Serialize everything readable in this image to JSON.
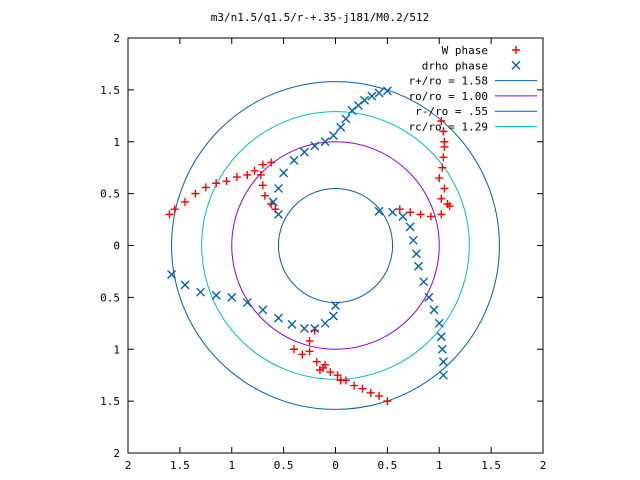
{
  "chart_data": {
    "type": "scatter",
    "title": "m3/n1.5/q1.5/r-+.35-j181/M0.2/512",
    "xlabel": "",
    "ylabel": "",
    "xlim": [
      -2,
      2
    ],
    "ylim": [
      -2,
      2
    ],
    "grid": false,
    "legend_position": "top-right",
    "x_ticks": [
      -2,
      -1.5,
      -1,
      -0.5,
      0,
      0.5,
      1,
      1.5,
      2
    ],
    "y_ticks": [
      -2,
      -1.5,
      -1,
      -0.5,
      0,
      0.5,
      1,
      1.5,
      2
    ],
    "x_tick_labels": [
      "2",
      "1.5",
      "1",
      "0.5",
      "0",
      "0.5",
      "1",
      "1.5",
      "2"
    ],
    "y_tick_labels": [
      "2",
      "1.5",
      "1",
      "0.5",
      "0",
      "0.5",
      "1",
      "1.5",
      "2"
    ],
    "circles": [
      {
        "name": "r+/ro = 1.58",
        "radius": 1.58,
        "color": "#0060ad"
      },
      {
        "name": "ro/ro = 1.00",
        "radius": 1.0,
        "color": "#9400d3"
      },
      {
        "name": "r-/ro = .55",
        "radius": 0.55,
        "color": "#0060ad"
      },
      {
        "name": "rc/ro = 1.29",
        "radius": 1.29,
        "color": "#00c0c0"
      }
    ],
    "series": [
      {
        "name": "W phase",
        "marker": "plus",
        "color": "#ff0000",
        "points": [
          [
            1.02,
            1.2
          ],
          [
            1.04,
            1.1
          ],
          [
            1.05,
            1.0
          ],
          [
            1.05,
            0.95
          ],
          [
            1.04,
            0.85
          ],
          [
            1.03,
            0.75
          ],
          [
            1.0,
            0.65
          ],
          [
            1.05,
            0.55
          ],
          [
            1.02,
            0.45
          ],
          [
            1.08,
            0.4
          ],
          [
            1.02,
            0.3
          ],
          [
            0.92,
            0.28
          ],
          [
            0.82,
            0.3
          ],
          [
            0.72,
            0.32
          ],
          [
            0.62,
            0.35
          ],
          [
            1.1,
            0.38
          ],
          [
            -1.6,
            0.3
          ],
          [
            -1.55,
            0.35
          ],
          [
            -1.45,
            0.42
          ],
          [
            -1.35,
            0.5
          ],
          [
            -1.25,
            0.56
          ],
          [
            -1.15,
            0.6
          ],
          [
            -1.05,
            0.62
          ],
          [
            -0.95,
            0.66
          ],
          [
            -0.85,
            0.68
          ],
          [
            -0.78,
            0.72
          ],
          [
            -0.7,
            0.78
          ],
          [
            -0.62,
            0.8
          ],
          [
            -0.72,
            0.68
          ],
          [
            -0.7,
            0.58
          ],
          [
            -0.68,
            0.48
          ],
          [
            -0.62,
            0.4
          ],
          [
            -0.58,
            0.35
          ],
          [
            -0.4,
            -1.0
          ],
          [
            -0.32,
            -1.05
          ],
          [
            -0.25,
            -1.02
          ],
          [
            -0.18,
            -1.12
          ],
          [
            -0.12,
            -1.18
          ],
          [
            -0.05,
            -1.22
          ],
          [
            0.02,
            -1.25
          ],
          [
            0.1,
            -1.3
          ],
          [
            0.18,
            -1.35
          ],
          [
            0.26,
            -1.38
          ],
          [
            0.34,
            -1.42
          ],
          [
            0.42,
            -1.45
          ],
          [
            0.5,
            -1.5
          ],
          [
            -0.2,
            -0.82
          ],
          [
            -0.25,
            -0.92
          ],
          [
            -0.1,
            -1.15
          ],
          [
            0.05,
            -1.3
          ],
          [
            -0.15,
            -1.2
          ]
        ]
      },
      {
        "name": "drho phase",
        "marker": "cross",
        "color": "#0060ad",
        "points": [
          [
            0.5,
            1.49
          ],
          [
            0.42,
            1.47
          ],
          [
            0.35,
            1.44
          ],
          [
            0.28,
            1.4
          ],
          [
            0.22,
            1.35
          ],
          [
            0.16,
            1.3
          ],
          [
            0.1,
            1.22
          ],
          [
            0.05,
            1.14
          ],
          [
            -0.02,
            1.06
          ],
          [
            -0.1,
            1.0
          ],
          [
            -0.2,
            0.96
          ],
          [
            -0.3,
            0.9
          ],
          [
            -0.4,
            0.82
          ],
          [
            -0.5,
            0.7
          ],
          [
            -0.55,
            0.55
          ],
          [
            -0.6,
            0.42
          ],
          [
            -0.55,
            0.3
          ],
          [
            0.42,
            0.33
          ],
          [
            0.55,
            0.32
          ],
          [
            0.65,
            0.28
          ],
          [
            0.72,
            0.18
          ],
          [
            0.75,
            0.05
          ],
          [
            0.78,
            -0.08
          ],
          [
            0.8,
            -0.2
          ],
          [
            0.85,
            -0.35
          ],
          [
            0.9,
            -0.5
          ],
          [
            0.95,
            -0.62
          ],
          [
            1.0,
            -0.75
          ],
          [
            1.02,
            -0.88
          ],
          [
            1.03,
            -1.0
          ],
          [
            1.04,
            -1.12
          ],
          [
            1.04,
            -1.25
          ],
          [
            -1.58,
            -0.28
          ],
          [
            -1.45,
            -0.38
          ],
          [
            -1.3,
            -0.45
          ],
          [
            -1.15,
            -0.48
          ],
          [
            -1.0,
            -0.5
          ],
          [
            -0.85,
            -0.55
          ],
          [
            -0.7,
            -0.62
          ],
          [
            -0.55,
            -0.7
          ],
          [
            -0.42,
            -0.76
          ],
          [
            -0.3,
            -0.8
          ],
          [
            -0.2,
            -0.8
          ],
          [
            -0.1,
            -0.75
          ],
          [
            -0.02,
            -0.68
          ],
          [
            0.0,
            -0.58
          ]
        ]
      }
    ]
  }
}
